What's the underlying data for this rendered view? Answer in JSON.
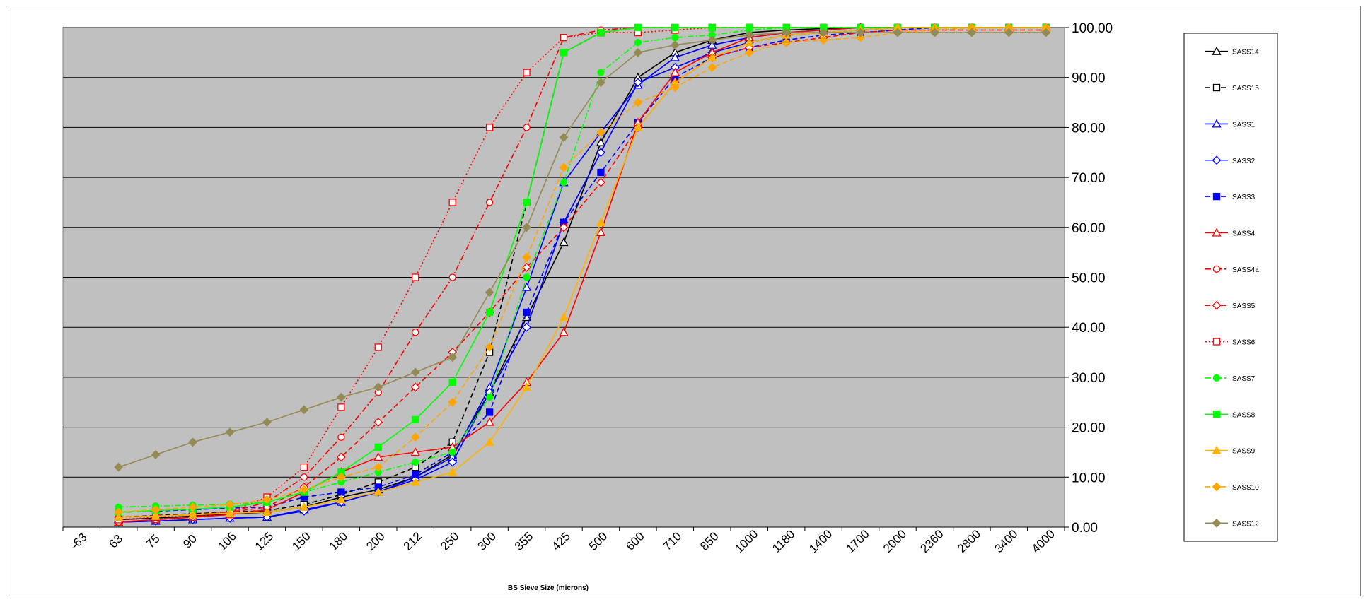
{
  "chart_data": {
    "type": "line",
    "title": "",
    "xlabel": "BS Sieve Size (microns)",
    "ylabel": "",
    "categories": [
      "-63",
      "63",
      "75",
      "90",
      "106",
      "125",
      "150",
      "180",
      "200",
      "212",
      "250",
      "300",
      "355",
      "425",
      "500",
      "600",
      "710",
      "850",
      "1000",
      "1180",
      "1400",
      "1700",
      "2000",
      "2360",
      "2800",
      "3400",
      "4000"
    ],
    "ylim": [
      0,
      100
    ],
    "yticks": [
      "0.00",
      "10.00",
      "20.00",
      "30.00",
      "40.00",
      "50.00",
      "60.00",
      "70.00",
      "80.00",
      "90.00",
      "100.00"
    ],
    "y_axis_side": "right",
    "plot_background": "#c0c0c0",
    "grid": "horizontal",
    "legend_position": "right",
    "series": [
      {
        "name": "SASS14",
        "color": "#000000",
        "dash": "solid",
        "marker": "triangle-open",
        "x": [
          "63",
          "75",
          "90",
          "106",
          "125",
          "150",
          "180",
          "200",
          "212",
          "250",
          "300",
          "355",
          "425",
          "500",
          "600",
          "710",
          "850",
          "1000",
          "1180",
          "1400",
          "1700",
          "2000",
          "2360",
          "2800",
          "3400",
          "4000"
        ],
        "values": [
          1.5,
          1.8,
          2.2,
          2.6,
          3.0,
          4.0,
          6.0,
          7.5,
          10.0,
          14.5,
          27.0,
          42.0,
          57.0,
          77.0,
          90.0,
          95.0,
          97.5,
          99.0,
          99.5,
          99.8,
          100,
          100,
          100,
          100,
          100,
          100
        ]
      },
      {
        "name": "SASS15",
        "color": "#000000",
        "dash": "dashed",
        "marker": "square-open",
        "x": [
          "63",
          "75",
          "90",
          "106",
          "125",
          "150",
          "180",
          "200",
          "212",
          "250",
          "300",
          "355",
          "425",
          "500",
          "600",
          "710",
          "850",
          "1000",
          "1180",
          "1400",
          "1700",
          "2000",
          "2360",
          "2800",
          "3400",
          "4000"
        ],
        "values": [
          2.0,
          2.3,
          2.7,
          3.0,
          3.3,
          4.5,
          6.5,
          9.0,
          12.0,
          17.0,
          35.0,
          65.0,
          95.0,
          99.0,
          100,
          100,
          100,
          100,
          100,
          100,
          100,
          100,
          100,
          100,
          100,
          100
        ]
      },
      {
        "name": "SASS1",
        "color": "#0000ff",
        "dash": "solid",
        "marker": "triangle-open",
        "x": [
          "63",
          "75",
          "90",
          "106",
          "125",
          "150",
          "180",
          "200",
          "212",
          "250",
          "300",
          "355",
          "425",
          "500",
          "600",
          "710",
          "850",
          "1000",
          "1180",
          "1400",
          "1700",
          "2000",
          "2360",
          "2800",
          "3400",
          "4000"
        ],
        "values": [
          1.0,
          1.2,
          1.5,
          1.8,
          2.0,
          3.5,
          5.0,
          7.0,
          10.0,
          14.0,
          28.0,
          48.0,
          69.0,
          79.0,
          88.5,
          94.0,
          96.5,
          98.0,
          99.0,
          99.5,
          100,
          100,
          100,
          100,
          100,
          100
        ]
      },
      {
        "name": "SASS2",
        "color": "#0000ff",
        "dash": "solid",
        "marker": "diamond-open",
        "x": [
          "63",
          "75",
          "90",
          "106",
          "125",
          "150",
          "180",
          "200",
          "212",
          "250",
          "300",
          "355",
          "425",
          "500",
          "600",
          "710",
          "850",
          "1000",
          "1180",
          "1400",
          "1700",
          "2000",
          "2360",
          "2800",
          "3400",
          "4000"
        ],
        "values": [
          1.0,
          1.2,
          1.5,
          1.8,
          2.0,
          3.2,
          5.0,
          7.0,
          9.5,
          13.0,
          27.0,
          40.0,
          61.0,
          75.0,
          89.0,
          92.0,
          95.0,
          97.0,
          98.5,
          99.0,
          99.5,
          100,
          100,
          100,
          100,
          100
        ]
      },
      {
        "name": "SASS3",
        "color": "#0000ff",
        "dash": "dashed",
        "marker": "square",
        "x": [
          "63",
          "75",
          "90",
          "106",
          "125",
          "150",
          "180",
          "200",
          "212",
          "250",
          "300",
          "355",
          "425",
          "500",
          "600",
          "710",
          "850",
          "1000",
          "1180",
          "1400",
          "1700",
          "2000",
          "2360",
          "2800",
          "3400",
          "4000"
        ],
        "values": [
          3.0,
          3.2,
          3.5,
          3.8,
          4.0,
          6.0,
          7.0,
          8.0,
          10.5,
          15.0,
          23.0,
          43.0,
          61.0,
          71.0,
          81.0,
          90.0,
          94.0,
          96.0,
          97.5,
          98.5,
          99.0,
          99.5,
          100,
          100,
          100,
          100
        ]
      },
      {
        "name": "SASS4",
        "color": "#ff0000",
        "dash": "solid",
        "marker": "triangle-open",
        "x": [
          "63",
          "75",
          "90",
          "106",
          "125",
          "150",
          "180",
          "200",
          "212",
          "250",
          "300",
          "355",
          "425",
          "500",
          "600",
          "710",
          "850",
          "1000",
          "1180",
          "1400",
          "1700",
          "2000",
          "2360",
          "2800",
          "3400",
          "4000"
        ],
        "values": [
          1.0,
          1.5,
          2.0,
          2.5,
          3.5,
          7.0,
          11.0,
          14.0,
          15.0,
          16.0,
          21.0,
          29.0,
          39.0,
          59.0,
          81.0,
          91.0,
          95.0,
          98.0,
          99.0,
          99.5,
          100,
          100,
          100,
          100,
          100,
          100
        ]
      },
      {
        "name": "SASS4a",
        "color": "#ff0000",
        "dash": "dashdot",
        "marker": "circle-open",
        "x": [
          "63",
          "75",
          "90",
          "106",
          "125",
          "150",
          "180",
          "200",
          "212",
          "250",
          "300",
          "355",
          "425",
          "500",
          "600",
          "710",
          "850",
          "1000",
          "1180",
          "1400",
          "1700",
          "2000",
          "2360",
          "2800",
          "3400",
          "4000"
        ],
        "values": [
          1.0,
          1.5,
          2.0,
          3.0,
          5.0,
          10.0,
          18.0,
          27.0,
          39.0,
          50.0,
          65.0,
          80.0,
          98.0,
          99.5,
          100,
          100,
          100,
          100,
          100,
          100,
          100,
          100,
          100,
          100,
          100,
          100
        ]
      },
      {
        "name": "SASS5",
        "color": "#ff0000",
        "dash": "dashed",
        "marker": "diamond-open",
        "x": [
          "63",
          "75",
          "90",
          "106",
          "125",
          "150",
          "180",
          "200",
          "212",
          "250",
          "300",
          "355",
          "425",
          "500",
          "600",
          "710",
          "850",
          "1000",
          "1180",
          "1400",
          "1700",
          "2000",
          "2360",
          "2800",
          "3400",
          "4000"
        ],
        "values": [
          2.0,
          2.2,
          2.5,
          3.0,
          4.0,
          8.0,
          14.0,
          21.0,
          28.0,
          35.0,
          43.0,
          52.0,
          60.0,
          69.0,
          80.0,
          89.0,
          94.0,
          96.0,
          97.0,
          98.0,
          99.0,
          99.5,
          99.5,
          99.5,
          99.5,
          99.5
        ]
      },
      {
        "name": "SASS6",
        "color": "#ff0000",
        "dash": "dotted",
        "marker": "square-open",
        "x": [
          "63",
          "75",
          "90",
          "106",
          "125",
          "150",
          "180",
          "200",
          "212",
          "250",
          "300",
          "355",
          "425",
          "500",
          "600",
          "710",
          "850",
          "1000",
          "1180",
          "1400",
          "1700",
          "2000",
          "2360",
          "2800",
          "3400",
          "4000"
        ],
        "values": [
          1.5,
          2.0,
          2.5,
          3.0,
          6.0,
          12.0,
          24.0,
          36.0,
          50.0,
          65.0,
          80.0,
          91.0,
          98.0,
          99.0,
          99.0,
          99.5,
          100,
          100,
          100,
          100,
          100,
          100,
          100,
          100,
          100,
          100
        ]
      },
      {
        "name": "SASS7",
        "color": "#00ff00",
        "dash": "dashdot",
        "marker": "circle",
        "x": [
          "63",
          "75",
          "90",
          "106",
          "125",
          "150",
          "180",
          "200",
          "212",
          "250",
          "300",
          "355",
          "425",
          "500",
          "600",
          "710",
          "850",
          "1000",
          "1180",
          "1400",
          "1700",
          "2000",
          "2360",
          "2800",
          "3400",
          "4000"
        ],
        "values": [
          4.0,
          4.2,
          4.4,
          4.6,
          5.0,
          7.0,
          9.0,
          11.0,
          13.0,
          15.0,
          26.0,
          50.0,
          69.0,
          91.0,
          97.0,
          98.0,
          98.5,
          99.5,
          100,
          100,
          100,
          100,
          100,
          100,
          100,
          100
        ]
      },
      {
        "name": "SASS8",
        "color": "#00ff00",
        "dash": "solid",
        "marker": "square",
        "x": [
          "63",
          "75",
          "90",
          "106",
          "125",
          "150",
          "180",
          "200",
          "212",
          "250",
          "300",
          "355",
          "425",
          "500",
          "600",
          "710",
          "850",
          "1000",
          "1180",
          "1400",
          "1700",
          "2000",
          "2360",
          "2800",
          "3400",
          "4000"
        ],
        "values": [
          3.0,
          3.3,
          3.6,
          4.0,
          5.0,
          7.0,
          11.0,
          16.0,
          21.5,
          29.0,
          43.0,
          65.0,
          95.0,
          99.0,
          100,
          100,
          100,
          100,
          100,
          100,
          100,
          100,
          100,
          100,
          100,
          100
        ]
      },
      {
        "name": "SASS9",
        "color": "#ffb300",
        "dash": "solid",
        "marker": "triangle",
        "x": [
          "63",
          "75",
          "90",
          "106",
          "125",
          "150",
          "180",
          "200",
          "212",
          "250",
          "300",
          "355",
          "425",
          "500",
          "600",
          "710",
          "850",
          "1000",
          "1180",
          "1400",
          "1700",
          "2000",
          "2360",
          "2800",
          "3400",
          "4000"
        ],
        "values": [
          2.0,
          2.2,
          2.5,
          2.8,
          3.0,
          4.0,
          5.5,
          7.0,
          9.0,
          11.0,
          17.0,
          28.0,
          42.0,
          61.0,
          80.0,
          89.0,
          94.0,
          97.0,
          98.5,
          99.0,
          99.5,
          100,
          100,
          100,
          100,
          100
        ]
      },
      {
        "name": "SASS10",
        "color": "#ffa500",
        "dash": "dashed",
        "marker": "diamond",
        "x": [
          "63",
          "75",
          "90",
          "106",
          "125",
          "150",
          "180",
          "200",
          "212",
          "250",
          "300",
          "355",
          "425",
          "500",
          "600",
          "710",
          "850",
          "1000",
          "1180",
          "1400",
          "1700",
          "2000",
          "2360",
          "2800",
          "3400",
          "4000"
        ],
        "values": [
          3.0,
          3.5,
          4.0,
          4.5,
          5.5,
          7.5,
          10.0,
          12.0,
          18.0,
          25.0,
          36.0,
          54.0,
          72.0,
          79.0,
          85.0,
          88.0,
          92.0,
          95.0,
          97.0,
          97.5,
          98.0,
          99.0,
          99.5,
          100,
          100,
          100
        ]
      },
      {
        "name": "SASS12",
        "color": "#948a54",
        "dash": "solid",
        "marker": "diamond",
        "x": [
          "-63",
          "63",
          "75",
          "90",
          "106",
          "125",
          "150",
          "180",
          "200",
          "212",
          "250",
          "300",
          "355",
          "425",
          "500",
          "600",
          "710",
          "850",
          "1000",
          "1180",
          "1400",
          "1700",
          "2000",
          "2360",
          "2800",
          "3400",
          "4000"
        ],
        "values": [
          null,
          12.0,
          14.5,
          17.0,
          19.0,
          21.0,
          23.5,
          26.0,
          28.0,
          31.0,
          34.0,
          47.0,
          60.0,
          78.0,
          89.0,
          95.0,
          96.5,
          97.5,
          98.5,
          99.0,
          99.0,
          99.0,
          99.0,
          99.0,
          99.0,
          99.0,
          99.0
        ]
      }
    ]
  }
}
